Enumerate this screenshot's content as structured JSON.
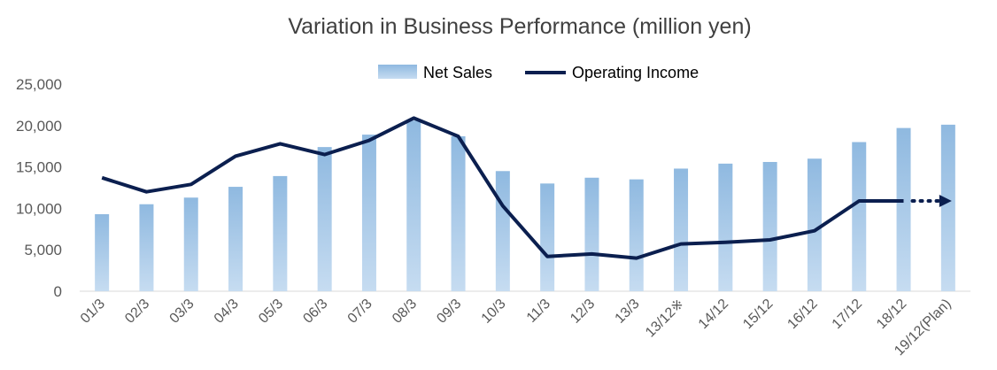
{
  "chart_data": {
    "type": "bar",
    "title": "Variation in Business Performance (million yen)",
    "categories": [
      "01/3",
      "02/3",
      "03/3",
      "04/3",
      "05/3",
      "06/3",
      "07/3",
      "08/3",
      "09/3",
      "10/3",
      "11/3",
      "12/3",
      "13/3",
      "13/12※",
      "14/12",
      "15/12",
      "16/12",
      "17/12",
      "18/12",
      "19/12(Plan)"
    ],
    "series": [
      {
        "name": "Net Sales",
        "type": "bar",
        "color": "#9dc3e6",
        "values": [
          9300,
          10500,
          11300,
          12600,
          13900,
          17400,
          18900,
          20600,
          18700,
          14500,
          13000,
          13700,
          13500,
          14800,
          15400,
          15600,
          16000,
          18000,
          19700,
          20100
        ]
      },
      {
        "name": "Operating Income",
        "type": "line",
        "color": "#0b1f4f",
        "values": [
          13700,
          12000,
          12900,
          16300,
          17800,
          16500,
          18200,
          20900,
          18700,
          10300,
          4200,
          4500,
          4000,
          5700,
          5900,
          6200,
          7300,
          10900,
          10900,
          null
        ],
        "projection_arrow": "18/12 to 19/12(Plan), dotted"
      }
    ],
    "ylim": [
      0,
      25000
    ],
    "yticks": [
      "0",
      "5,000",
      "10,000",
      "15,000",
      "20,000",
      "25,000"
    ],
    "xlabel": "",
    "ylabel": "",
    "grid": false,
    "legend_placement": "top-center"
  }
}
